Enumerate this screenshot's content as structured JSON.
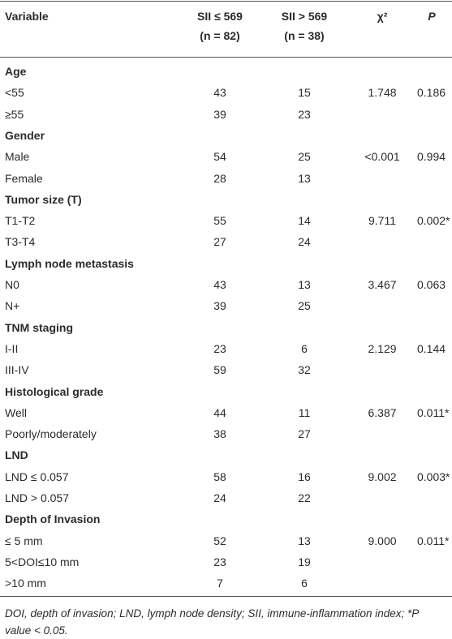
{
  "table": {
    "header": {
      "variable": "Variable",
      "low": [
        "SII ≤ 569",
        "(n = 82)"
      ],
      "high": [
        "SII > 569",
        "(n = 38)"
      ],
      "chi": "χ²",
      "p": "P"
    },
    "groups": [
      {
        "title": "Age",
        "rows": [
          [
            "<55",
            "43",
            "15",
            "1.748",
            "0.186"
          ],
          [
            "≥55",
            "39",
            "23"
          ]
        ]
      },
      {
        "title": "Gender",
        "rows": [
          [
            "Male",
            "54",
            "25",
            "<0.001",
            "0.994"
          ],
          [
            "Female",
            "28",
            "13"
          ]
        ]
      },
      {
        "title": "Tumor size (T)",
        "rows": [
          [
            "T1-T2",
            "55",
            "14",
            "9.711",
            "0.002*"
          ],
          [
            "T3-T4",
            "27",
            "24"
          ]
        ]
      },
      {
        "title": "Lymph node metastasis",
        "rows": [
          [
            "N0",
            "43",
            "13",
            "3.467",
            "0.063"
          ],
          [
            "N+",
            "39",
            "25"
          ]
        ]
      },
      {
        "title": "TNM staging",
        "rows": [
          [
            "I-II",
            "23",
            "6",
            "2.129",
            "0.144"
          ],
          [
            "III-IV",
            "59",
            "32"
          ]
        ]
      },
      {
        "title": "Histological grade",
        "rows": [
          [
            "Well",
            "44",
            "11",
            "6.387",
            "0.011*"
          ],
          [
            "Poorly/moderately",
            "38",
            "27"
          ]
        ]
      },
      {
        "title": "LND",
        "rows": [
          [
            "LND ≤ 0.057",
            "58",
            "16",
            "9.002",
            "0.003*"
          ],
          [
            "LND > 0.057",
            "24",
            "22"
          ]
        ]
      },
      {
        "title": "Depth of Invasion",
        "rows": [
          [
            "≤ 5 mm",
            "52",
            "13",
            "9.000",
            "0.011*"
          ],
          [
            "5<DOI≤10 mm",
            "23",
            "19"
          ],
          [
            ">10 mm",
            "7",
            "6"
          ]
        ]
      }
    ],
    "footnote": "DOI, depth of invasion; LND, lymph node density; SII, immune-inflammation index; *P value < 0.05."
  }
}
